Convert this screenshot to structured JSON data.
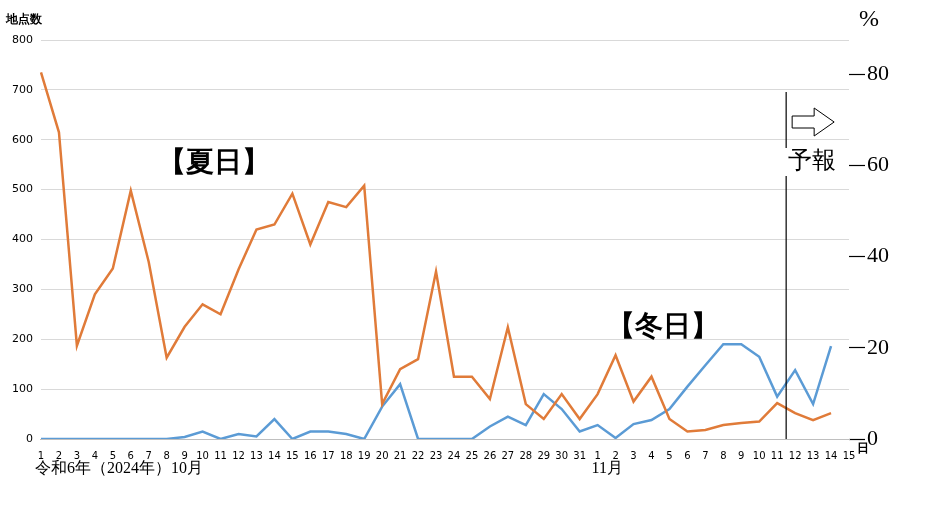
{
  "chart_data": {
    "type": "line",
    "categories": [
      "1",
      "2",
      "3",
      "4",
      "5",
      "6",
      "7",
      "8",
      "9",
      "10",
      "11",
      "12",
      "13",
      "14",
      "15",
      "16",
      "17",
      "18",
      "19",
      "20",
      "21",
      "22",
      "23",
      "24",
      "25",
      "26",
      "27",
      "28",
      "29",
      "30",
      "31",
      "1",
      "2",
      "3",
      "4",
      "5",
      "6",
      "7",
      "8",
      "9",
      "10",
      "11",
      "12",
      "13",
      "14",
      "15"
    ],
    "series": [
      {
        "name": "【夏日】",
        "color": "#e07b39",
        "values": [
          735,
          615,
          187,
          290,
          342,
          498,
          355,
          163,
          225,
          270,
          250,
          340,
          420,
          430,
          492,
          390,
          475,
          465,
          508,
          70,
          140,
          160,
          336,
          125,
          125,
          80,
          224,
          70,
          40,
          90,
          40,
          90,
          168,
          75,
          125,
          40,
          15,
          18,
          28,
          32,
          35,
          72,
          52,
          38,
          52,
          null
        ]
      },
      {
        "name": "【冬日】",
        "color": "#5b9bd5",
        "values": [
          0,
          0,
          0,
          0,
          0,
          0,
          0,
          0,
          4,
          15,
          0,
          10,
          5,
          40,
          0,
          15,
          15,
          10,
          0,
          65,
          110,
          0,
          0,
          0,
          0,
          25,
          45,
          28,
          90,
          60,
          15,
          28,
          2,
          30,
          38,
          60,
          105,
          148,
          190,
          190,
          165,
          85,
          138,
          70,
          186,
          null
        ]
      }
    ],
    "x_label": "日",
    "y_label": "地点数",
    "y2_label": "%",
    "ylim": [
      0,
      800
    ],
    "yticks": [
      0,
      100,
      200,
      300,
      400,
      500,
      600,
      700,
      800
    ],
    "y2lim": [
      0,
      87.5
    ],
    "y2ticks": [
      0,
      20,
      40,
      60,
      80
    ],
    "grid": true,
    "x_annotations": [
      {
        "text": "令和6年（2024年）10月",
        "x": 0
      },
      {
        "text": "11月",
        "x": 31
      }
    ],
    "forecast": {
      "text": "予報",
      "x": 41.5
    }
  }
}
